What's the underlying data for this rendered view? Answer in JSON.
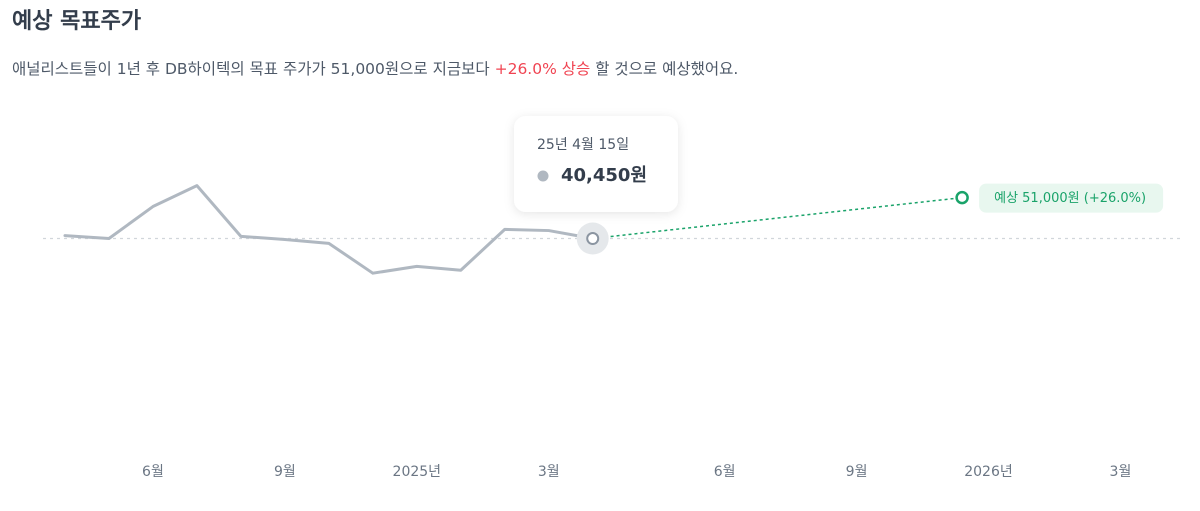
{
  "chart_data": {
    "type": "line",
    "title": "예상 목표주가",
    "subtitle": {
      "before": "애널리스트들이 1년 후 DB하이텍의 목표 주가가 51,000원으로 지금보다 ",
      "highlight": "+26.0% 상승",
      "after": " 할 것으로 예상했어요."
    },
    "x": [
      0,
      1,
      2,
      3,
      4,
      5,
      6,
      7,
      8,
      9,
      10,
      11,
      12
    ],
    "series": [
      {
        "color": "#b0b8c1",
        "values": [
          41200,
          40450,
          48700,
          54100,
          41000,
          40200,
          39200,
          31500,
          33250,
          32250,
          42800,
          42500,
          40450
        ]
      }
    ],
    "xlim": [
      -0.5,
      25.4
    ],
    "xticks": [
      {
        "value": 2,
        "label": "6월"
      },
      {
        "value": 5,
        "label": "9월"
      },
      {
        "value": 8,
        "label": "2025년"
      },
      {
        "value": 11,
        "label": "3월"
      },
      {
        "value": 15,
        "label": "6월"
      },
      {
        "value": 18,
        "label": "9월"
      },
      {
        "value": 21,
        "label": "2026년"
      },
      {
        "value": 24,
        "label": "3월"
      }
    ],
    "ylim": [
      -10000,
      70000
    ],
    "tooltip": {
      "label": "25년 4월 15일",
      "value": 40450,
      "value_label": "40,450원"
    },
    "forecast": {
      "x": 20.4,
      "value": 51000,
      "label": "예상 51,000원 (+26.0%)",
      "color": "#1aa36a"
    }
  }
}
